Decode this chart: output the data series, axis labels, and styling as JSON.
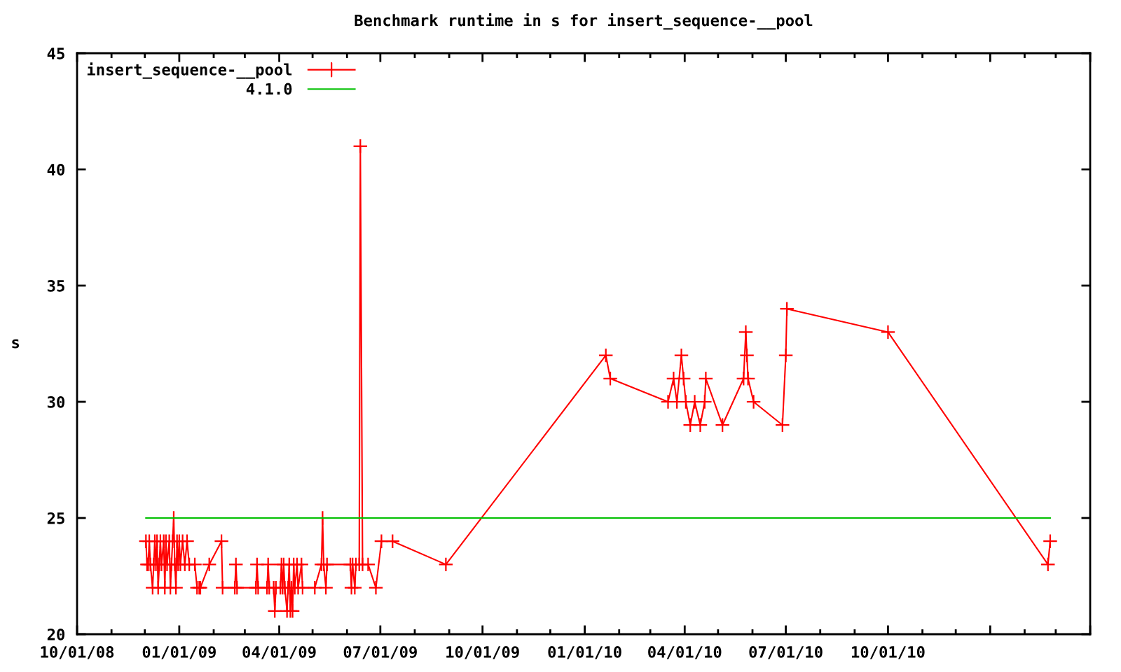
{
  "chart_data": {
    "type": "line",
    "title": "Benchmark runtime in s for insert_sequence-__pool",
    "ylabel": "s",
    "xlim": [
      "2008-10-01",
      "2011-04-01"
    ],
    "xticks": [
      {
        "value": "2008-10-01",
        "label": "10/01/08"
      },
      {
        "value": "2009-01-01",
        "label": "01/01/09"
      },
      {
        "value": "2009-04-01",
        "label": "04/01/09"
      },
      {
        "value": "2009-07-01",
        "label": "07/01/09"
      },
      {
        "value": "2009-10-01",
        "label": "10/01/09"
      },
      {
        "value": "2010-01-01",
        "label": "01/01/10"
      },
      {
        "value": "2010-04-01",
        "label": "04/01/10"
      },
      {
        "value": "2010-07-01",
        "label": "07/01/10"
      },
      {
        "value": "2010-10-01",
        "label": "10/01/10"
      },
      {
        "value": "2011-01-01",
        "label": null
      },
      {
        "value": "2011-04-01",
        "label": null
      }
    ],
    "ylim": [
      20,
      45
    ],
    "yticks": [
      20,
      25,
      30,
      35,
      40,
      45
    ],
    "legend": "top left",
    "marker": "cross",
    "line_style": "solid",
    "series": [
      {
        "name": "insert_sequence-__pool",
        "color": "#ff0000",
        "x": [
          "2008-12-02",
          "2008-12-03",
          "2008-12-04",
          "2008-12-05",
          "2008-12-06",
          "2008-12-08",
          "2008-12-09",
          "2008-12-10",
          "2008-12-11",
          "2008-12-12",
          "2008-12-13",
          "2008-12-14",
          "2008-12-15",
          "2008-12-16",
          "2008-12-18",
          "2008-12-19",
          "2008-12-20",
          "2008-12-21",
          "2008-12-23",
          "2008-12-24",
          "2008-12-25",
          "2008-12-26",
          "2008-12-27",
          "2008-12-28",
          "2008-12-29",
          "2008-12-30",
          "2008-12-31",
          "2009-01-01",
          "2009-01-02",
          "2009-01-04",
          "2009-01-06",
          "2009-01-08",
          "2009-01-10",
          "2009-01-15",
          "2009-01-17",
          "2009-01-19",
          "2009-01-20",
          "2009-01-28",
          "2009-02-08",
          "2009-02-09",
          "2009-02-20",
          "2009-02-21",
          "2009-02-22",
          "2009-03-11",
          "2009-03-12",
          "2009-03-13",
          "2009-03-21",
          "2009-03-22",
          "2009-03-23",
          "2009-03-27",
          "2009-03-28",
          "2009-03-29",
          "2009-04-02",
          "2009-04-03",
          "2009-04-04",
          "2009-04-05",
          "2009-04-06",
          "2009-04-08",
          "2009-04-09",
          "2009-04-10",
          "2009-04-11",
          "2009-04-12",
          "2009-04-13",
          "2009-04-14",
          "2009-04-15",
          "2009-04-17",
          "2009-04-18",
          "2009-04-21",
          "2009-04-22",
          "2009-05-03",
          "2009-05-09",
          "2009-05-10",
          "2009-05-11",
          "2009-05-13",
          "2009-05-14",
          "2009-06-04",
          "2009-06-05",
          "2009-06-06",
          "2009-06-08",
          "2009-06-09",
          "2009-06-12",
          "2009-06-13",
          "2009-06-15",
          "2009-06-20",
          "2009-06-27",
          "2009-07-02",
          "2009-07-12",
          "2009-08-29",
          "2010-01-20",
          "2010-01-24",
          "2010-03-17",
          "2010-03-22",
          "2010-03-25",
          "2010-03-29",
          "2010-03-31",
          "2010-04-02",
          "2010-04-06",
          "2010-04-10",
          "2010-04-15",
          "2010-04-19",
          "2010-04-20",
          "2010-05-05",
          "2010-05-24",
          "2010-05-26",
          "2010-05-27",
          "2010-05-28",
          "2010-06-02",
          "2010-06-28",
          "2010-07-01",
          "2010-07-02",
          "2010-10-01",
          "2011-02-22",
          "2011-02-24"
        ],
        "values": [
          24,
          23,
          23,
          24,
          23,
          22,
          23,
          24,
          23,
          24,
          22,
          23,
          24,
          23,
          24,
          22,
          24,
          23,
          24,
          22,
          23,
          24,
          25,
          23,
          22,
          24,
          23,
          24,
          23,
          24,
          23,
          24,
          23,
          23,
          22,
          22,
          22,
          23,
          24,
          22,
          22,
          23,
          22,
          22,
          23,
          22,
          22,
          23,
          22,
          22,
          21,
          22,
          22,
          23,
          22,
          23,
          22,
          21,
          22,
          23,
          21,
          22,
          21,
          23,
          22,
          23,
          22,
          23,
          22,
          22,
          23,
          25,
          23,
          22,
          23,
          23,
          22,
          23,
          22,
          23,
          23,
          41,
          23,
          23,
          22,
          24,
          24,
          23,
          32,
          31,
          30,
          31,
          30,
          32,
          31,
          30,
          29,
          30,
          29,
          30,
          31,
          29,
          31,
          33,
          32,
          31,
          30,
          29,
          32,
          34,
          33,
          23,
          24
        ]
      },
      {
        "name": "4.1.0",
        "color": "#00c000",
        "marker": "none",
        "x": [
          "2008-12-02",
          "2011-02-24"
        ],
        "values": [
          25,
          25
        ]
      }
    ]
  }
}
